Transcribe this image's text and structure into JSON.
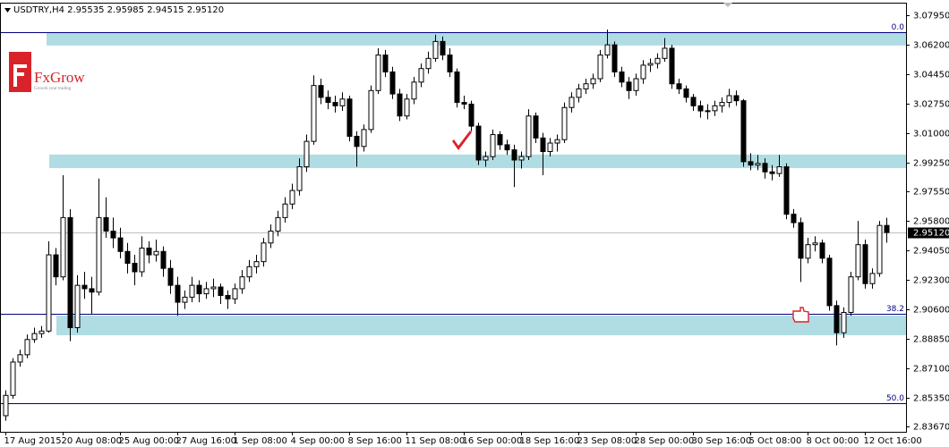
{
  "chart_data": {
    "type": "candlestick",
    "title": "USDTRY,H4  2.95535 2.95985 2.94515 2.95120",
    "logo": {
      "name": "FxGrow",
      "tagline": "Growth your trading"
    },
    "ylim": [
      2.8335,
      3.0869
    ],
    "yticks": [
      {
        "value": 3.0795,
        "label": "3.07950"
      },
      {
        "value": 3.062,
        "label": "3.06200"
      },
      {
        "value": 3.0445,
        "label": "3.04450"
      },
      {
        "value": 3.0275,
        "label": "3.02750"
      },
      {
        "value": 3.01,
        "label": "3.01000"
      },
      {
        "value": 2.9925,
        "label": "2.99250"
      },
      {
        "value": 2.9755,
        "label": "2.97550"
      },
      {
        "value": 2.958,
        "label": "2.95800"
      },
      {
        "value": 2.9405,
        "label": "2.94050"
      },
      {
        "value": 2.923,
        "label": "2.92300"
      },
      {
        "value": 2.906,
        "label": "2.90600"
      },
      {
        "value": 2.8885,
        "label": "2.88850"
      },
      {
        "value": 2.871,
        "label": "2.87100"
      },
      {
        "value": 2.8535,
        "label": "2.85350"
      },
      {
        "value": 2.8367,
        "label": "2.83670"
      }
    ],
    "last_price": {
      "value": 2.9512,
      "label": "2.95120"
    },
    "fib_levels": [
      {
        "value": 3.0695,
        "label": "0.0"
      },
      {
        "value": 2.9032,
        "label": "38.2"
      },
      {
        "value": 2.8504,
        "label": "50.0"
      }
    ],
    "zones": [
      [
        3.0616,
        3.0695
      ],
      [
        2.9892,
        2.9972
      ],
      [
        2.8905,
        2.9021
      ]
    ],
    "bull_color": "#ffffff",
    "bear_color": "#000000",
    "zone_color": "#b0dde3",
    "fib_color": "#000080",
    "categories": [
      "17 Aug 2015",
      null,
      null,
      null,
      null,
      null,
      null,
      null,
      "20 Aug 08:00",
      null,
      null,
      null,
      null,
      null,
      null,
      null,
      "25 Aug 00:00",
      null,
      null,
      null,
      null,
      null,
      null,
      null,
      "27 Aug 16:00",
      null,
      null,
      null,
      null,
      null,
      null,
      null,
      "1 Sep 08:00",
      null,
      null,
      null,
      null,
      null,
      null,
      null,
      "4 Sep 00:00",
      null,
      null,
      null,
      null,
      null,
      null,
      null,
      "8 Sep 16:00",
      null,
      null,
      null,
      null,
      null,
      null,
      null,
      "11 Sep 08:00",
      null,
      null,
      null,
      null,
      null,
      null,
      null,
      "16 Sep 00:00",
      null,
      null,
      null,
      null,
      null,
      null,
      null,
      "18 Sep 16:00",
      null,
      null,
      null,
      null,
      null,
      null,
      null,
      "23 Sep 08:00",
      null,
      null,
      null,
      null,
      null,
      null,
      null,
      "28 Sep 00:00",
      null,
      null,
      null,
      null,
      null,
      null,
      null,
      "30 Sep 16:00",
      null,
      null,
      null,
      null,
      null,
      null,
      null,
      "5 Oct 08:00",
      null,
      null,
      null,
      null,
      null,
      null,
      null,
      "8 Oct 00:00",
      null,
      null,
      null,
      null,
      null,
      null,
      null,
      "12 Oct 16:00",
      null,
      null,
      null
    ],
    "candles": [
      [
        2.843,
        2.858,
        2.84,
        2.855
      ],
      [
        2.855,
        2.877,
        2.853,
        2.8747
      ],
      [
        2.8747,
        2.882,
        2.872,
        2.879
      ],
      [
        2.879,
        2.891,
        2.877,
        2.888
      ],
      [
        2.888,
        2.895,
        2.886,
        2.8915
      ],
      [
        2.8915,
        2.896,
        2.889,
        2.893
      ],
      [
        2.893,
        2.946,
        2.892,
        2.938
      ],
      [
        2.938,
        2.942,
        2.92,
        2.925
      ],
      [
        2.925,
        2.985,
        2.923,
        2.96
      ],
      [
        2.96,
        2.965,
        2.887,
        2.895
      ],
      [
        2.895,
        2.926,
        2.892,
        2.92
      ],
      [
        2.92,
        2.928,
        2.912,
        2.918
      ],
      [
        2.918,
        2.925,
        2.903,
        2.916
      ],
      [
        2.916,
        2.983,
        2.914,
        2.96
      ],
      [
        2.96,
        2.972,
        2.948,
        2.952
      ],
      [
        2.952,
        2.96,
        2.942,
        2.948
      ],
      [
        2.948,
        2.954,
        2.936,
        2.94
      ],
      [
        2.94,
        2.945,
        2.927,
        2.933
      ],
      [
        2.933,
        2.938,
        2.92,
        2.928
      ],
      [
        2.928,
        2.949,
        2.925,
        2.942
      ],
      [
        2.942,
        2.946,
        2.933,
        2.938
      ],
      [
        2.938,
        2.947,
        2.934,
        2.94
      ],
      [
        2.94,
        2.943,
        2.925,
        2.93
      ],
      [
        2.93,
        2.935,
        2.915,
        2.92
      ],
      [
        2.92,
        2.925,
        2.902,
        2.91
      ],
      [
        2.91,
        2.917,
        2.906,
        2.913
      ],
      [
        2.913,
        2.925,
        2.91,
        2.92
      ],
      [
        2.92,
        2.923,
        2.91,
        2.915
      ],
      [
        2.915,
        2.922,
        2.912,
        2.918
      ],
      [
        2.918,
        2.924,
        2.913,
        2.919
      ],
      [
        2.919,
        2.921,
        2.909,
        2.914
      ],
      [
        2.914,
        2.917,
        2.906,
        2.912
      ],
      [
        2.912,
        2.921,
        2.909,
        2.918
      ],
      [
        2.918,
        2.929,
        2.915,
        2.925
      ],
      [
        2.925,
        2.935,
        2.922,
        2.931
      ],
      [
        2.931,
        2.938,
        2.927,
        2.934
      ],
      [
        2.934,
        2.948,
        2.931,
        2.945
      ],
      [
        2.945,
        2.956,
        2.942,
        2.952
      ],
      [
        2.952,
        2.964,
        2.949,
        2.96
      ],
      [
        2.96,
        2.972,
        2.957,
        2.968
      ],
      [
        2.968,
        2.98,
        2.965,
        2.976
      ],
      [
        2.976,
        2.995,
        2.973,
        2.99
      ],
      [
        2.99,
        3.009,
        2.987,
        3.005
      ],
      [
        3.005,
        3.044,
        3.003,
        3.038
      ],
      [
        3.038,
        3.042,
        3.027,
        3.031
      ],
      [
        3.031,
        3.035,
        3.024,
        3.028
      ],
      [
        3.028,
        3.032,
        3.022,
        3.026
      ],
      [
        3.026,
        3.034,
        3.023,
        3.03
      ],
      [
        3.03,
        3.032,
        3.005,
        3.008
      ],
      [
        3.008,
        3.011,
        2.99,
        3.002
      ],
      [
        3.002,
        3.015,
        2.999,
        3.012
      ],
      [
        3.012,
        3.038,
        3.01,
        3.035
      ],
      [
        3.035,
        3.06,
        3.033,
        3.056
      ],
      [
        3.056,
        3.059,
        3.043,
        3.046
      ],
      [
        3.046,
        3.049,
        3.03,
        3.033
      ],
      [
        3.033,
        3.036,
        3.017,
        3.02
      ],
      [
        3.02,
        3.033,
        3.018,
        3.03
      ],
      [
        3.03,
        3.043,
        3.027,
        3.04
      ],
      [
        3.04,
        3.051,
        3.037,
        3.048
      ],
      [
        3.048,
        3.058,
        3.045,
        3.054
      ],
      [
        3.054,
        3.068,
        3.052,
        3.064
      ],
      [
        3.064,
        3.067,
        3.053,
        3.056
      ],
      [
        3.056,
        3.06,
        3.043,
        3.046
      ],
      [
        3.046,
        3.048,
        3.025,
        3.028
      ],
      [
        3.028,
        3.032,
        3.024,
        3.027
      ],
      [
        3.027,
        3.029,
        3.011,
        3.014
      ],
      [
        3.014,
        3.016,
        2.991,
        2.994
      ],
      [
        2.994,
        2.999,
        2.99,
        2.996
      ],
      [
        2.996,
        3.012,
        2.994,
        3.009
      ],
      [
        3.009,
        3.011,
        3.0,
        3.003
      ],
      [
        3.003,
        3.006,
        2.997,
        3.0
      ],
      [
        3.0,
        3.003,
        2.978,
        2.994
      ],
      [
        2.994,
        2.999,
        2.989,
        2.996
      ],
      [
        2.996,
        3.024,
        2.994,
        3.02
      ],
      [
        3.02,
        3.022,
        3.004,
        3.007
      ],
      [
        3.007,
        3.01,
        2.985,
        2.999
      ],
      [
        2.999,
        3.007,
        2.996,
        3.004
      ],
      [
        3.004,
        3.009,
        2.999,
        3.006
      ],
      [
        3.006,
        3.028,
        3.004,
        3.025
      ],
      [
        3.025,
        3.034,
        3.022,
        3.031
      ],
      [
        3.031,
        3.039,
        3.028,
        3.036
      ],
      [
        3.036,
        3.042,
        3.033,
        3.039
      ],
      [
        3.039,
        3.045,
        3.036,
        3.042
      ],
      [
        3.042,
        3.059,
        3.04,
        3.056
      ],
      [
        3.056,
        3.071,
        3.054,
        3.062
      ],
      [
        3.062,
        3.064,
        3.043,
        3.046
      ],
      [
        3.046,
        3.049,
        3.037,
        3.04
      ],
      [
        3.04,
        3.043,
        3.03,
        3.035
      ],
      [
        3.035,
        3.045,
        3.032,
        3.042
      ],
      [
        3.042,
        3.053,
        3.039,
        3.05
      ],
      [
        3.05,
        3.054,
        3.046,
        3.051
      ],
      [
        3.051,
        3.057,
        3.048,
        3.054
      ],
      [
        3.054,
        3.066,
        3.052,
        3.06
      ],
      [
        3.06,
        3.062,
        3.036,
        3.039
      ],
      [
        3.039,
        3.042,
        3.033,
        3.036
      ],
      [
        3.036,
        3.038,
        3.028,
        3.031
      ],
      [
        3.031,
        3.033,
        3.023,
        3.026
      ],
      [
        3.026,
        3.029,
        3.019,
        3.023
      ],
      [
        3.023,
        3.027,
        3.018,
        3.0231
      ],
      [
        3.0231,
        3.029,
        3.02,
        3.026
      ],
      [
        3.026,
        3.031,
        3.022,
        3.028
      ],
      [
        3.028,
        3.036,
        3.025,
        3.032
      ],
      [
        3.032,
        3.035,
        3.026,
        3.029
      ],
      [
        3.029,
        3.03,
        2.99,
        2.993
      ],
      [
        2.993,
        2.998,
        2.988,
        2.991
      ],
      [
        2.991,
        2.997,
        2.988,
        2.992
      ],
      [
        2.992,
        2.995,
        2.983,
        2.987
      ],
      [
        2.987,
        2.991,
        2.982,
        2.986
      ],
      [
        2.986,
        2.997,
        2.984,
        2.99
      ],
      [
        2.99,
        2.992,
        2.959,
        2.962
      ],
      [
        2.962,
        2.965,
        2.954,
        2.957
      ],
      [
        2.957,
        2.96,
        2.922,
        2.936
      ],
      [
        2.936,
        2.948,
        2.933,
        2.944
      ],
      [
        2.944,
        2.949,
        2.94,
        2.945
      ],
      [
        2.945,
        2.947,
        2.933,
        2.936
      ],
      [
        2.936,
        2.938,
        2.905,
        2.908
      ],
      [
        2.908,
        2.911,
        2.8845,
        2.892
      ],
      [
        2.892,
        2.907,
        2.889,
        2.904
      ],
      [
        2.904,
        2.928,
        2.902,
        2.925
      ],
      [
        2.925,
        2.958,
        2.923,
        2.944
      ],
      [
        2.944,
        2.947,
        2.918,
        2.921
      ],
      [
        2.921,
        2.93,
        2.918,
        2.927
      ],
      [
        2.927,
        2.958,
        2.925,
        2.95535
      ],
      [
        2.95535,
        2.95985,
        2.94515,
        2.9512
      ]
    ]
  }
}
